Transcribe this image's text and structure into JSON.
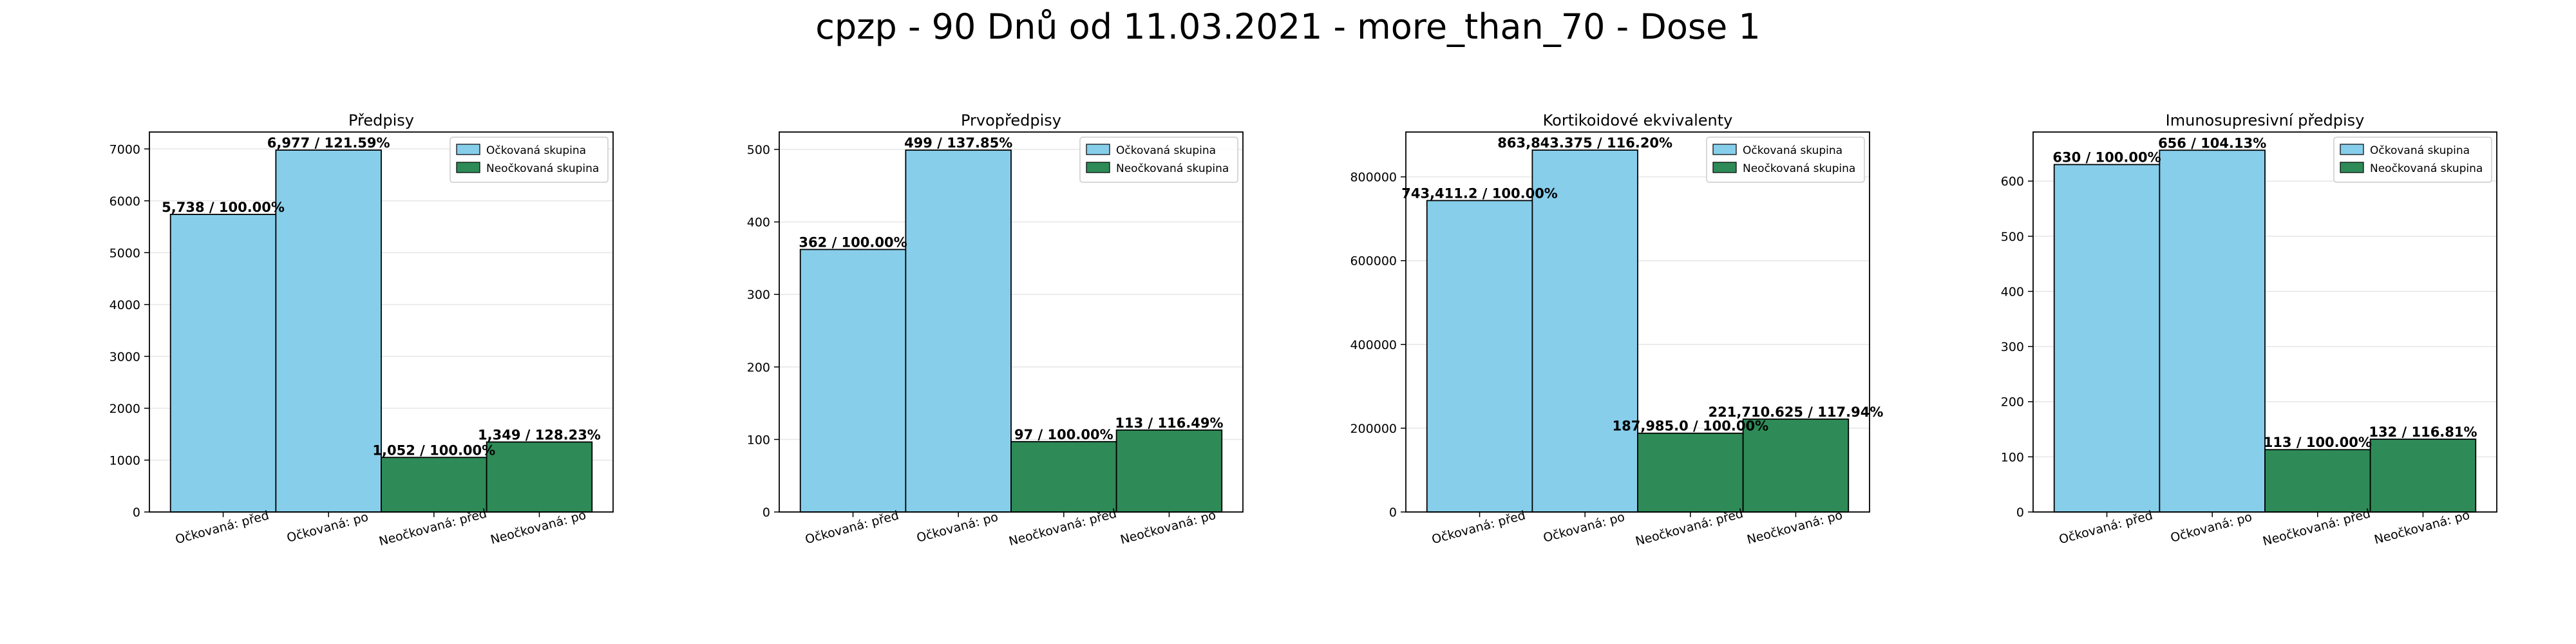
{
  "figure_title": "cpzp - 90 Dnů od 11.03.2021 - more_than_70 - Dose 1",
  "colors": {
    "vaccinated": "#87ceeb",
    "unvaccinated": "#2e8b57",
    "edge": "#000000",
    "grid": "#e6e6e6"
  },
  "legend_entries": [
    "Očkovaná skupina",
    "Neočkovaná skupina"
  ],
  "chart_data": [
    {
      "type": "bar",
      "title": "Předpisy",
      "categories": [
        "Očkovaná: před",
        "Očkovaná: po",
        "Neočkovaná: před",
        "Neočkovaná: po"
      ],
      "values": [
        5738,
        6977,
        1052,
        1349
      ],
      "bar_labels": [
        "5,738 / 100.00%",
        "6,977 / 121.59%",
        "1,052 / 100.00%",
        "1,349 / 128.23%"
      ],
      "groups": [
        "vaccinated",
        "vaccinated",
        "unvaccinated",
        "unvaccinated"
      ],
      "yticks": [
        0,
        1000,
        2000,
        3000,
        4000,
        5000,
        6000,
        7000
      ],
      "ylim": [
        0,
        7326
      ],
      "grid": true,
      "legend": "top-right"
    },
    {
      "type": "bar",
      "title": "Prvopředpisy",
      "categories": [
        "Očkovaná: před",
        "Očkovaná: po",
        "Neočkovaná: před",
        "Neočkovaná: po"
      ],
      "values": [
        362,
        499,
        97,
        113
      ],
      "bar_labels": [
        "362 / 100.00%",
        "499 / 137.85%",
        "97 / 100.00%",
        "113 / 116.49%"
      ],
      "groups": [
        "vaccinated",
        "vaccinated",
        "unvaccinated",
        "unvaccinated"
      ],
      "yticks": [
        0,
        100,
        200,
        300,
        400,
        500
      ],
      "ylim": [
        0,
        524
      ],
      "grid": true,
      "legend": "top-right"
    },
    {
      "type": "bar",
      "title": "Kortikoidové ekvivalenty",
      "categories": [
        "Očkovaná: před",
        "Očkovaná: po",
        "Neočkovaná: před",
        "Neočkovaná: po"
      ],
      "values": [
        743411.2,
        863843.375,
        187985.0,
        221710.625
      ],
      "bar_labels": [
        "743,411.2 / 100.00%",
        "863,843.375 / 116.20%",
        "187,985.0 / 100.00%",
        "221,710.625 / 117.94%"
      ],
      "groups": [
        "vaccinated",
        "vaccinated",
        "unvaccinated",
        "unvaccinated"
      ],
      "yticks": [
        0,
        200000,
        400000,
        600000,
        800000
      ],
      "ylim": [
        0,
        907036
      ],
      "grid": true,
      "legend": "top-right"
    },
    {
      "type": "bar",
      "title": "Imunosupresivní předpisy",
      "categories": [
        "Očkovaná: před",
        "Očkovaná: po",
        "Neočkovaná: před",
        "Neočkovaná: po"
      ],
      "values": [
        630,
        656,
        113,
        132
      ],
      "bar_labels": [
        "630 / 100.00%",
        "656 / 104.13%",
        "113 / 100.00%",
        "132 / 116.81%"
      ],
      "groups": [
        "vaccinated",
        "vaccinated",
        "unvaccinated",
        "unvaccinated"
      ],
      "yticks": [
        0,
        100,
        200,
        300,
        400,
        500,
        600
      ],
      "ylim": [
        0,
        689
      ],
      "grid": true,
      "legend": "top-right"
    }
  ]
}
